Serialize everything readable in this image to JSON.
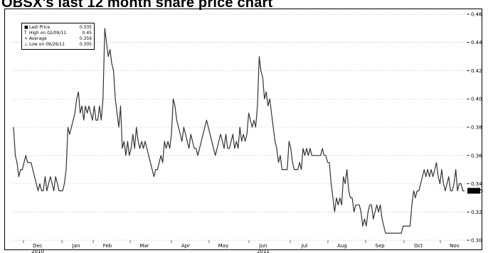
{
  "title": "OBSX's last 12 month share price chart",
  "legend": {
    "items": [
      {
        "symbol": "■",
        "label": "Last Price",
        "value": "0.335"
      },
      {
        "symbol": "T",
        "label": "High on 02/09/11",
        "value": "0.45"
      },
      {
        "symbol": "+",
        "label": "Average",
        "value": "0.359"
      },
      {
        "symbol": "⊥",
        "label": "Low on 09/26/11",
        "value": "0.305"
      }
    ]
  },
  "chart_data": {
    "type": "line",
    "title": "OBSX's last 12 month share price chart",
    "xlabel": "",
    "ylabel": "",
    "x_tick_labels": [
      "Dec",
      "Jan",
      "Feb",
      "Mar",
      "Apr",
      "May",
      "Jun",
      "Jul",
      "Aug",
      "Sep",
      "Oct",
      "Nov"
    ],
    "year_labels": [
      "2010",
      "2011"
    ],
    "y_tick_labels": [
      "0.46",
      "0.44",
      "0.42",
      "0.40",
      "0.38",
      "0.36",
      "0.34",
      "0.32",
      "0.30"
    ],
    "ylim": [
      0.298,
      0.462
    ],
    "last_price_label": "0.335",
    "grid": "horizontal dotted",
    "legend_position": "top-left",
    "series": [
      {
        "values": [
          0.38,
          0.36,
          0.355,
          0.345,
          0.35,
          0.35,
          0.355,
          0.36,
          0.355,
          0.355,
          0.355,
          0.35,
          0.345,
          0.34,
          0.335,
          0.34,
          0.335,
          0.335,
          0.345,
          0.335,
          0.34,
          0.345,
          0.34,
          0.335,
          0.345,
          0.34,
          0.335,
          0.335,
          0.335,
          0.34,
          0.35,
          0.38,
          0.375,
          0.38,
          0.385,
          0.39,
          0.4,
          0.405,
          0.39,
          0.395,
          0.385,
          0.395,
          0.39,
          0.395,
          0.39,
          0.385,
          0.395,
          0.385,
          0.385,
          0.395,
          0.385,
          0.4,
          0.45,
          0.44,
          0.43,
          0.435,
          0.425,
          0.42,
          0.4,
          0.39,
          0.38,
          0.395,
          0.365,
          0.37,
          0.36,
          0.37,
          0.36,
          0.365,
          0.375,
          0.365,
          0.38,
          0.37,
          0.365,
          0.37,
          0.365,
          0.37,
          0.365,
          0.36,
          0.355,
          0.35,
          0.345,
          0.35,
          0.35,
          0.355,
          0.36,
          0.355,
          0.37,
          0.365,
          0.37,
          0.365,
          0.375,
          0.4,
          0.395,
          0.385,
          0.38,
          0.375,
          0.37,
          0.38,
          0.375,
          0.37,
          0.365,
          0.375,
          0.37,
          0.365,
          0.365,
          0.36,
          0.365,
          0.37,
          0.375,
          0.38,
          0.385,
          0.38,
          0.375,
          0.37,
          0.365,
          0.36,
          0.365,
          0.37,
          0.375,
          0.37,
          0.365,
          0.375,
          0.365,
          0.365,
          0.37,
          0.375,
          0.365,
          0.37,
          0.365,
          0.38,
          0.37,
          0.375,
          0.37,
          0.375,
          0.39,
          0.385,
          0.38,
          0.385,
          0.38,
          0.395,
          0.43,
          0.42,
          0.415,
          0.4,
          0.405,
          0.395,
          0.4,
          0.39,
          0.38,
          0.37,
          0.365,
          0.355,
          0.36,
          0.35,
          0.35,
          0.35,
          0.35,
          0.37,
          0.365,
          0.355,
          0.35,
          0.35,
          0.35,
          0.355,
          0.35,
          0.365,
          0.36,
          0.365,
          0.36,
          0.365,
          0.36,
          0.36,
          0.36,
          0.36,
          0.36,
          0.36,
          0.365,
          0.36,
          0.36,
          0.355,
          0.355,
          0.34,
          0.33,
          0.32,
          0.33,
          0.325,
          0.33,
          0.325,
          0.345,
          0.34,
          0.35,
          0.335,
          0.33,
          0.33,
          0.32,
          0.325,
          0.325,
          0.325,
          0.32,
          0.31,
          0.315,
          0.31,
          0.32,
          0.325,
          0.325,
          0.315,
          0.32,
          0.325,
          0.32,
          0.325,
          0.315,
          0.31,
          0.305,
          0.305,
          0.305,
          0.305,
          0.305,
          0.305,
          0.305,
          0.305,
          0.305,
          0.305,
          0.31,
          0.31,
          0.31,
          0.31,
          0.31,
          0.325,
          0.335,
          0.33,
          0.335,
          0.335,
          0.34,
          0.345,
          0.35,
          0.345,
          0.35,
          0.345,
          0.35,
          0.345,
          0.35,
          0.355,
          0.345,
          0.34,
          0.35,
          0.34,
          0.335,
          0.34,
          0.345,
          0.335,
          0.335,
          0.34,
          0.35,
          0.335,
          0.34,
          0.34,
          0.335,
          0.335
        ]
      }
    ]
  }
}
